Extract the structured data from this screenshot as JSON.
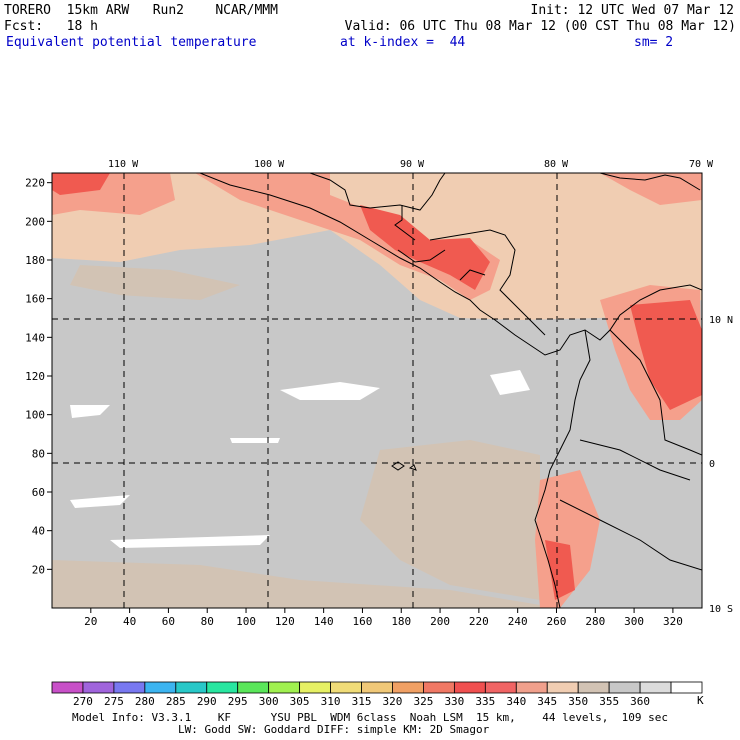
{
  "header": {
    "line1_left": "TORERO  15km ARW   Run2    NCAR/MMM",
    "line1_right": "Init: 12 UTC Wed 07 Mar 12",
    "line2_left": "Fcst:   18 h",
    "line2_right": "Valid: 06 UTC Thu 08 Mar 12 (00 CST Thu 08 Mar 12)",
    "line3_field": "Equivalent potential temperature",
    "line3_level": "at k-index =  44",
    "line3_sm": "sm= 2"
  },
  "map": {
    "top_lon_labels": [
      "110 W",
      "100 W",
      "90 W",
      "80 W",
      "70 W"
    ],
    "right_lat_labels": [
      "10 N",
      "0",
      "10 S"
    ],
    "x_ticks": [
      "20",
      "40",
      "60",
      "80",
      "100",
      "120",
      "140",
      "160",
      "180",
      "200",
      "220",
      "240",
      "260",
      "280",
      "300",
      "320"
    ],
    "y_ticks": [
      "20",
      "40",
      "60",
      "80",
      "100",
      "120",
      "140",
      "160",
      "180",
      "200",
      "220"
    ],
    "colors": {
      "background_gray": "#c8c8c8",
      "tan": "#f0cdb2",
      "mid_gray": "#c0c0c0",
      "warm_gray": "#d2c3b4",
      "salmon": "#f5a08c",
      "red": "#f05a50",
      "coast": "#000000"
    }
  },
  "colorbar": {
    "colors": [
      "#c850c8",
      "#a064dc",
      "#7878f0",
      "#3cb4f0",
      "#28c8c8",
      "#28e6a0",
      "#5ae65a",
      "#a0f050",
      "#e6f064",
      "#f0dc78",
      "#f0c878",
      "#f0a064",
      "#f07864",
      "#f05050",
      "#f06464",
      "#f0a08c",
      "#f0cdb2",
      "#d2c3b4",
      "#c8c8c8",
      "#dcdcdc",
      "#ffffff"
    ],
    "labels": [
      "270",
      "275",
      "280",
      "285",
      "290",
      "295",
      "300",
      "305",
      "310",
      "315",
      "320",
      "325",
      "330",
      "335",
      "340",
      "345",
      "350",
      "355",
      "360"
    ],
    "unit": "K"
  },
  "footer": {
    "line1": "Model Info: V3.3.1    KF      YSU PBL  WDM 6class  Noah LSM  15 km,    44 levels,  109 sec",
    "line2": "                LW: Godd SW: Goddard DIFF: simple KM: 2D Smagor"
  }
}
